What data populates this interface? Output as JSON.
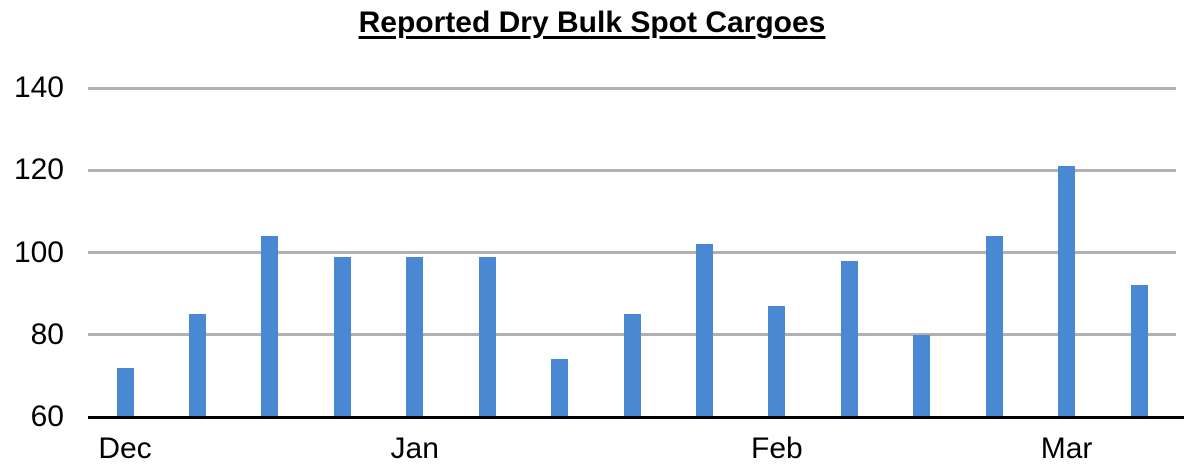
{
  "chart_data": {
    "type": "bar",
    "title": "Reported Dry Bulk Spot Cargoes",
    "values": [
      72,
      85,
      104,
      99,
      99,
      99,
      74,
      85,
      102,
      87,
      98,
      80,
      104,
      121,
      92
    ],
    "x_tick_labels": [
      {
        "label": "Dec",
        "bar_index": 0
      },
      {
        "label": "Jan",
        "bar_index": 4
      },
      {
        "label": "Feb",
        "bar_index": 9
      },
      {
        "label": "Mar",
        "bar_index": 13
      }
    ],
    "y_ticks": [
      60,
      80,
      100,
      120,
      140
    ],
    "ylim": [
      60,
      140
    ],
    "xlabel": "",
    "ylabel": "",
    "grid": true,
    "legend_position": "none",
    "bar_color": "#4a88d3",
    "gridline_color": "#b1b1b1",
    "axis_color": "#000000",
    "text_color": "#000000"
  }
}
